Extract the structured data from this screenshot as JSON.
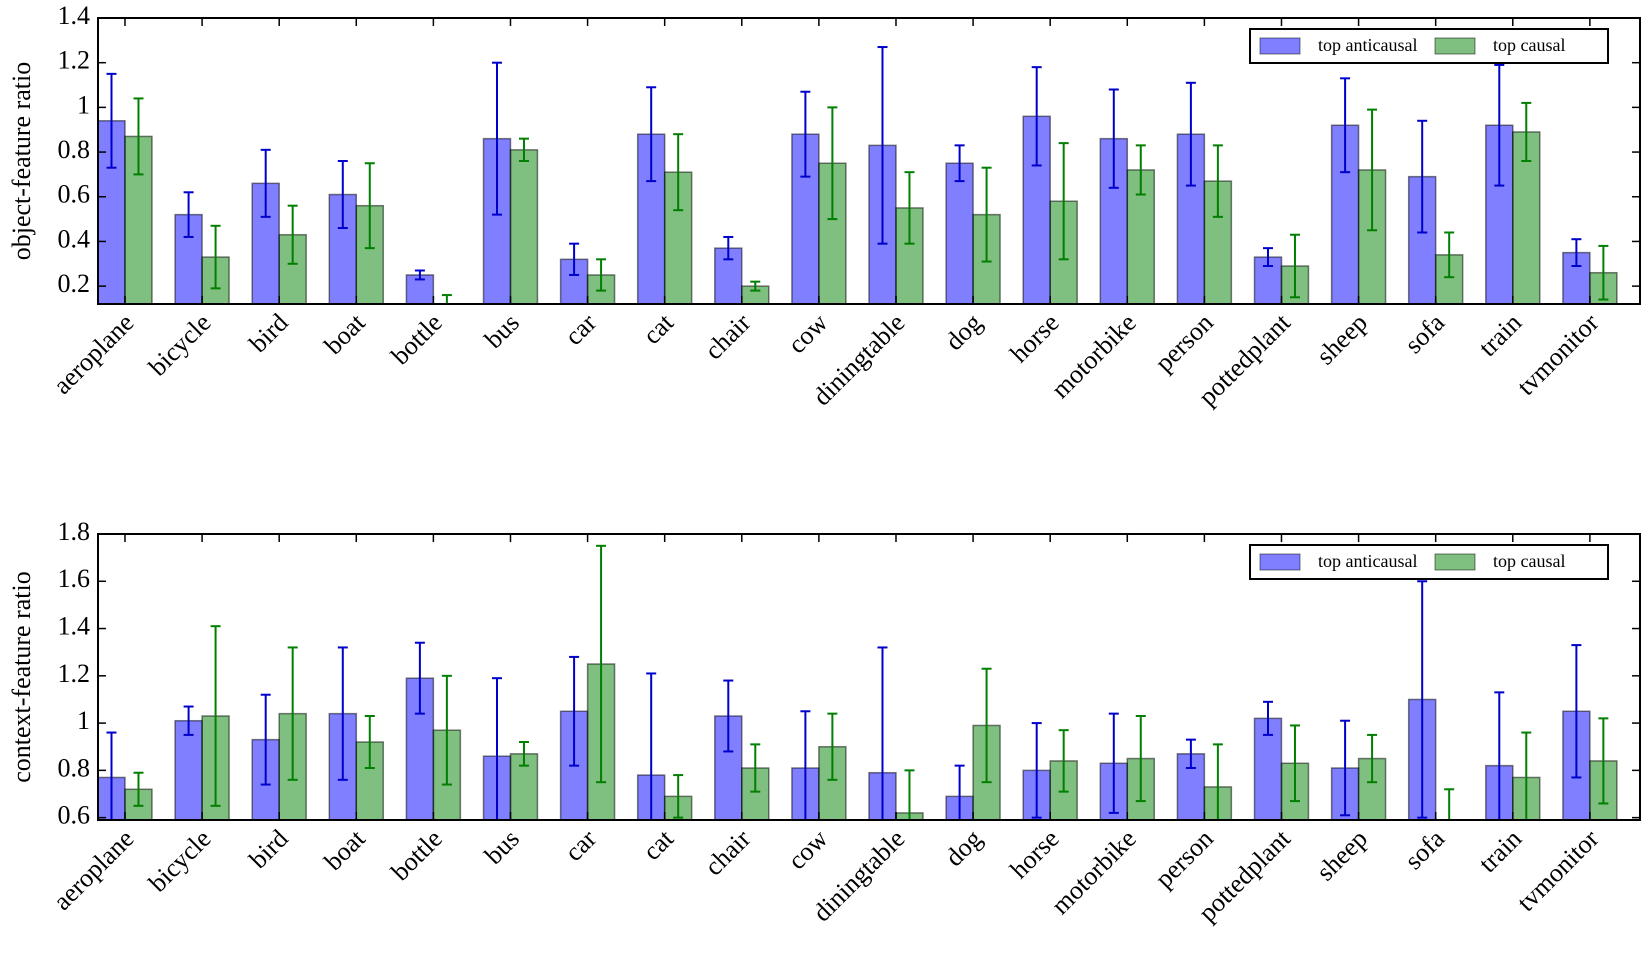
{
  "chart_data": [
    {
      "type": "bar",
      "ylabel": "object-feature ratio",
      "categories": [
        "aeroplane",
        "bicycle",
        "bird",
        "boat",
        "bottle",
        "bus",
        "car",
        "cat",
        "chair",
        "cow",
        "diningtable",
        "dog",
        "horse",
        "motorbike",
        "person",
        "pottedplant",
        "sheep",
        "sofa",
        "train",
        "tvmonitor"
      ],
      "series": [
        {
          "name": "top anticausal",
          "color": "#0000ff",
          "error_color": "#0000cc",
          "values": [
            0.94,
            0.52,
            0.66,
            0.61,
            0.25,
            0.86,
            0.32,
            0.88,
            0.37,
            0.88,
            0.83,
            0.75,
            0.96,
            0.86,
            0.88,
            0.33,
            0.92,
            0.69,
            0.92,
            0.35
          ],
          "errors": [
            0.21,
            0.1,
            0.15,
            0.15,
            0.02,
            0.34,
            0.07,
            0.21,
            0.05,
            0.19,
            0.44,
            0.08,
            0.22,
            0.22,
            0.23,
            0.04,
            0.21,
            0.25,
            0.27,
            0.06
          ]
        },
        {
          "name": "top causal",
          "color": "#008000",
          "error_color": "#007f00",
          "values": [
            0.87,
            0.33,
            0.43,
            0.56,
            0.08,
            0.81,
            0.25,
            0.71,
            0.2,
            0.75,
            0.55,
            0.52,
            0.58,
            0.72,
            0.67,
            0.29,
            0.72,
            0.34,
            0.89,
            0.26
          ],
          "errors": [
            0.17,
            0.14,
            0.13,
            0.19,
            0.08,
            0.05,
            0.07,
            0.17,
            0.02,
            0.25,
            0.16,
            0.21,
            0.26,
            0.11,
            0.16,
            0.14,
            0.27,
            0.1,
            0.13,
            0.12
          ]
        }
      ],
      "ylim": [
        0.12,
        1.4
      ],
      "yticks": [
        0.2,
        0.4,
        0.6,
        0.8,
        1.0,
        1.2,
        1.4
      ],
      "legend": "upper right"
    },
    {
      "type": "bar",
      "ylabel": "context-feature ratio",
      "categories": [
        "aeroplane",
        "bicycle",
        "bird",
        "boat",
        "bottle",
        "bus",
        "car",
        "cat",
        "chair",
        "cow",
        "diningtable",
        "dog",
        "horse",
        "motorbike",
        "person",
        "pottedplant",
        "sheep",
        "sofa",
        "train",
        "tvmonitor"
      ],
      "series": [
        {
          "name": "top anticausal",
          "color": "#0000ff",
          "error_color": "#0000cc",
          "values": [
            0.77,
            1.01,
            0.93,
            1.04,
            1.19,
            0.86,
            1.05,
            0.78,
            1.03,
            0.81,
            0.79,
            0.69,
            0.8,
            0.83,
            0.87,
            1.02,
            0.81,
            1.1,
            0.82,
            1.05
          ],
          "errors": [
            0.19,
            0.06,
            0.19,
            0.28,
            0.15,
            0.33,
            0.23,
            0.43,
            0.15,
            0.24,
            0.53,
            0.13,
            0.2,
            0.21,
            0.06,
            0.07,
            0.2,
            0.5,
            0.31,
            0.28
          ]
        },
        {
          "name": "top causal",
          "color": "#008000",
          "error_color": "#007f00",
          "values": [
            0.72,
            1.03,
            1.04,
            0.92,
            0.97,
            0.87,
            1.25,
            0.69,
            0.81,
            0.9,
            0.62,
            0.99,
            0.84,
            0.85,
            0.73,
            0.83,
            0.85,
            0.58,
            0.77,
            0.84
          ],
          "errors": [
            0.07,
            0.38,
            0.28,
            0.11,
            0.23,
            0.05,
            0.5,
            0.09,
            0.1,
            0.14,
            0.18,
            0.24,
            0.13,
            0.18,
            0.18,
            0.16,
            0.1,
            0.14,
            0.19,
            0.18
          ]
        }
      ],
      "ylim": [
        0.59,
        1.8
      ],
      "yticks": [
        0.6,
        0.8,
        1.0,
        1.2,
        1.4,
        1.6,
        1.8
      ],
      "legend": "upper right"
    }
  ]
}
